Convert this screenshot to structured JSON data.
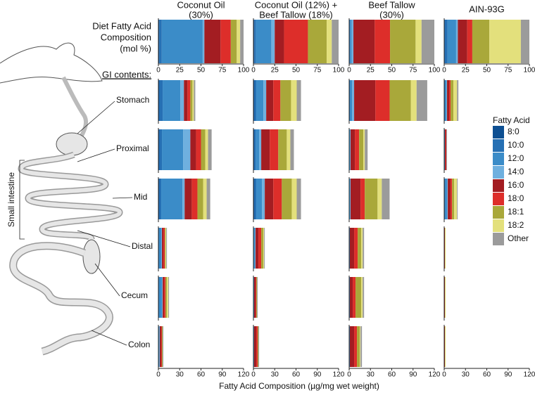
{
  "chart_data": {
    "type": "stacked-barh",
    "diets": [
      [
        "Coconut Oil",
        "(30%)"
      ],
      [
        "Coconut Oil (12%) +",
        "Beef Tallow (18%)"
      ],
      [
        "Beef Tallow",
        "(30%)"
      ],
      [
        "AIN-93G"
      ]
    ],
    "diet_label": [
      "Diet Fatty Acid",
      "Composition",
      "(mol %)"
    ],
    "gi_label": "GI contents:",
    "small_intestine_label": "Small intestine",
    "x_label": "Fatty Acid Composition (µg/mg wet weight)",
    "legend_title": "Fatty Acid",
    "fatty_acids": [
      {
        "name": "8:0",
        "color": "#0d4f92"
      },
      {
        "name": "10:0",
        "color": "#2670b4"
      },
      {
        "name": "12:0",
        "color": "#3b8cc8"
      },
      {
        "name": "14:0",
        "color": "#6fb0df"
      },
      {
        "name": "16:0",
        "color": "#a31d22"
      },
      {
        "name": "18:0",
        "color": "#dd2e2a"
      },
      {
        "name": "18:1",
        "color": "#a9a83a"
      },
      {
        "name": "18:2",
        "color": "#e3e07c"
      },
      {
        "name": "Other",
        "color": "#9b9b9b"
      }
    ],
    "diet_xlim": [
      0,
      100
    ],
    "diet_xticks": [
      0,
      25,
      50,
      75,
      100
    ],
    "diet_composition": [
      [
        1,
        3,
        48,
        2,
        19,
        12,
        7,
        4,
        4
      ],
      [
        1,
        2,
        18,
        4,
        11,
        28,
        22,
        6,
        8
      ],
      [
        0,
        1,
        2,
        2,
        25,
        18,
        30,
        7,
        15
      ],
      [
        0,
        4,
        10,
        2,
        11,
        6,
        20,
        37,
        10
      ]
    ],
    "gi_xlim": [
      0,
      120
    ],
    "gi_xticks": [
      0,
      30,
      60,
      90,
      120
    ],
    "gi_contents": [
      {
        "site": "Stomach",
        "values": [
          [
            1,
            5,
            25,
            5,
            5,
            4,
            3,
            2,
            2
          ],
          [
            1,
            3,
            10,
            4,
            10,
            10,
            15,
            8,
            6
          ],
          [
            0,
            1,
            3,
            3,
            30,
            20,
            30,
            8,
            15
          ],
          [
            0,
            1,
            2,
            1,
            3,
            2,
            4,
            5,
            2
          ]
        ]
      },
      {
        "site": "Proximal",
        "values": [
          [
            1,
            4,
            30,
            10,
            8,
            7,
            6,
            4,
            5
          ],
          [
            1,
            2,
            5,
            3,
            12,
            12,
            12,
            5,
            5
          ],
          [
            0,
            0,
            1,
            1,
            6,
            6,
            6,
            2,
            4
          ],
          [
            0,
            0,
            1,
            0,
            1,
            1,
            0,
            0,
            1
          ]
        ]
      },
      {
        "site": "Mid",
        "values": [
          [
            1,
            3,
            30,
            3,
            10,
            8,
            8,
            5,
            5
          ],
          [
            1,
            3,
            8,
            4,
            12,
            12,
            14,
            7,
            6
          ],
          [
            0,
            0,
            1,
            1,
            14,
            6,
            18,
            6,
            11
          ],
          [
            0,
            1,
            3,
            1,
            4,
            2,
            3,
            4,
            1
          ]
        ]
      },
      {
        "site": "Distal",
        "values": [
          [
            0,
            1,
            3,
            1,
            2,
            2,
            1,
            1,
            1
          ],
          [
            0,
            0,
            2,
            1,
            4,
            4,
            3,
            1,
            1
          ],
          [
            0,
            0,
            1,
            0,
            6,
            5,
            5,
            2,
            2
          ],
          [
            0,
            0,
            0,
            0,
            1,
            0,
            0,
            1,
            0
          ]
        ]
      },
      {
        "site": "Cecum",
        "values": [
          [
            0,
            1,
            4,
            1,
            2,
            2,
            2,
            2,
            1
          ],
          [
            0,
            0,
            1,
            0,
            2,
            1,
            1,
            0,
            1
          ],
          [
            0,
            0,
            1,
            0,
            4,
            4,
            8,
            2,
            2
          ],
          [
            0,
            0,
            0,
            0,
            1,
            0,
            0,
            1,
            0
          ]
        ]
      },
      {
        "site": "Colon",
        "values": [
          [
            0,
            0,
            1,
            1,
            2,
            1,
            1,
            0,
            1
          ],
          [
            0,
            0,
            1,
            0,
            3,
            2,
            1,
            0,
            1
          ],
          [
            0,
            0,
            1,
            0,
            6,
            4,
            4,
            1,
            2
          ],
          [
            0,
            0,
            0,
            0,
            1,
            0,
            0,
            1,
            0
          ]
        ]
      }
    ]
  }
}
